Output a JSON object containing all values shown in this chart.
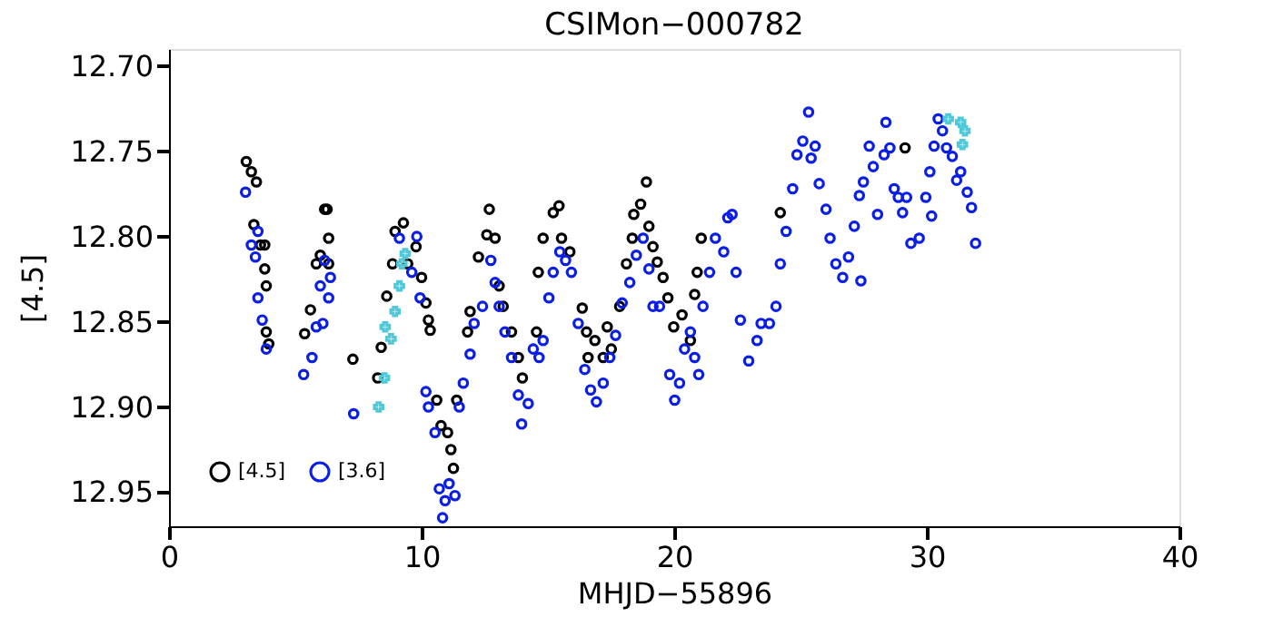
{
  "chart_data": {
    "type": "scatter",
    "title": "CSIMon−000782",
    "xlabel": "MHJD−55896",
    "ylabel": "[4.5]",
    "xlim": [
      0,
      40
    ],
    "xticks": [
      0,
      10,
      20,
      30,
      40
    ],
    "ylim": [
      12.97,
      12.69
    ],
    "yticks": [
      {
        "value": 12.7,
        "label": "12.70"
      },
      {
        "value": 12.75,
        "label": "12.75"
      },
      {
        "value": 12.8,
        "label": "12.80"
      },
      {
        "value": 12.85,
        "label": "12.85"
      },
      {
        "value": 12.9,
        "label": "12.90"
      },
      {
        "value": 12.95,
        "label": "12.95"
      }
    ],
    "grid": false,
    "legend": "bottom left",
    "series": [
      {
        "name": "[4.5]",
        "color": "#000000",
        "marker": "circle",
        "x": [
          3.06,
          3.26,
          3.46,
          3.36,
          3.62,
          3.79,
          3.85,
          3.79,
          3.85,
          3.95,
          5.37,
          5.6,
          5.83,
          5.99,
          6.16,
          6.32,
          6.32,
          6.26,
          7.28,
          8.26,
          8.4,
          8.62,
          8.85,
          8.95,
          9.28,
          9.45,
          9.78,
          10.0,
          10.17,
          10.27,
          10.34,
          10.6,
          10.77,
          11.03,
          11.16,
          11.26,
          11.39,
          11.82,
          11.92,
          12.25,
          12.58,
          12.68,
          12.91,
          13.07,
          13.23,
          13.56,
          13.83,
          13.99,
          14.55,
          14.62,
          14.81,
          15.21,
          15.44,
          15.54,
          15.87,
          16.36,
          16.53,
          16.59,
          16.86,
          17.19,
          17.35,
          17.51,
          17.84,
          18.11,
          18.34,
          18.4,
          18.67,
          18.9,
          19.0,
          19.16,
          19.33,
          19.56,
          19.75,
          19.98,
          20.31,
          20.64,
          20.81,
          20.91,
          21.07,
          24.2,
          29.14
        ],
        "values": [
          12.756,
          12.762,
          12.768,
          12.793,
          12.805,
          12.819,
          12.829,
          12.805,
          12.856,
          12.863,
          12.857,
          12.843,
          12.816,
          12.811,
          12.784,
          12.801,
          12.816,
          12.784,
          12.872,
          12.883,
          12.865,
          12.835,
          12.816,
          12.797,
          12.792,
          12.816,
          12.806,
          12.824,
          12.839,
          12.849,
          12.855,
          12.896,
          12.911,
          12.915,
          12.925,
          12.936,
          12.896,
          12.856,
          12.844,
          12.812,
          12.799,
          12.784,
          12.801,
          12.829,
          12.841,
          12.856,
          12.871,
          12.883,
          12.856,
          12.821,
          12.801,
          12.786,
          12.782,
          12.801,
          12.809,
          12.842,
          12.856,
          12.871,
          12.861,
          12.871,
          12.853,
          12.866,
          12.841,
          12.816,
          12.801,
          12.787,
          12.781,
          12.768,
          12.794,
          12.806,
          12.815,
          12.824,
          12.836,
          12.853,
          12.846,
          12.861,
          12.834,
          12.821,
          12.801,
          12.786,
          12.748
        ]
      },
      {
        "name": "[3.6]",
        "color": "#0a1ee6",
        "marker": "circle",
        "x": [
          3.03,
          3.26,
          3.42,
          3.52,
          3.69,
          3.85,
          3.52,
          5.33,
          5.66,
          5.83,
          5.99,
          6.16,
          6.32,
          6.39,
          6.09,
          7.31,
          9.12,
          9.61,
          9.81,
          9.94,
          10.17,
          10.27,
          10.53,
          10.7,
          10.83,
          10.93,
          11.09,
          11.32,
          11.49,
          11.65,
          11.92,
          12.08,
          12.41,
          12.74,
          12.91,
          13.07,
          13.3,
          13.56,
          13.83,
          13.96,
          14.22,
          14.42,
          14.65,
          14.81,
          15.04,
          15.21,
          15.47,
          15.7,
          15.93,
          16.2,
          16.46,
          16.69,
          16.92,
          17.19,
          17.45,
          17.68,
          17.94,
          18.24,
          18.5,
          18.77,
          19.0,
          19.16,
          19.42,
          19.82,
          20.02,
          20.21,
          20.41,
          20.64,
          20.81,
          20.97,
          21.14,
          21.4,
          21.63,
          21.96,
          22.12,
          22.29,
          22.45,
          22.62,
          22.95,
          23.28,
          23.44,
          23.77,
          24.03,
          24.2,
          24.43,
          24.69,
          24.86,
          25.09,
          25.32,
          25.42,
          25.58,
          25.74,
          26.01,
          26.17,
          26.4,
          26.67,
          26.9,
          27.13,
          27.33,
          27.49,
          27.72,
          27.88,
          28.05,
          28.31,
          28.38,
          28.54,
          28.71,
          28.87,
          29.04,
          29.2,
          29.37,
          29.7,
          29.96,
          30.12,
          30.29,
          30.45,
          30.62,
          30.78,
          31.01,
          31.18,
          31.34,
          31.6,
          31.77,
          31.93,
          30.19,
          27.39
        ],
        "values": [
          12.774,
          12.805,
          12.812,
          12.836,
          12.849,
          12.866,
          12.797,
          12.881,
          12.871,
          12.853,
          12.829,
          12.814,
          12.836,
          12.824,
          12.851,
          12.904,
          12.801,
          12.821,
          12.8,
          12.836,
          12.891,
          12.9,
          12.915,
          12.948,
          12.965,
          12.955,
          12.945,
          12.952,
          12.9,
          12.886,
          12.869,
          12.851,
          12.841,
          12.814,
          12.827,
          12.841,
          12.856,
          12.871,
          12.893,
          12.91,
          12.898,
          12.866,
          12.871,
          12.861,
          12.836,
          12.821,
          12.809,
          12.814,
          12.821,
          12.851,
          12.878,
          12.89,
          12.897,
          12.886,
          12.871,
          12.858,
          12.839,
          12.827,
          12.811,
          12.801,
          12.819,
          12.841,
          12.841,
          12.881,
          12.896,
          12.886,
          12.866,
          12.856,
          12.871,
          12.881,
          12.841,
          12.821,
          12.801,
          12.809,
          12.789,
          12.787,
          12.821,
          12.849,
          12.873,
          12.861,
          12.851,
          12.851,
          12.841,
          12.816,
          12.797,
          12.772,
          12.752,
          12.744,
          12.727,
          12.754,
          12.747,
          12.769,
          12.784,
          12.801,
          12.816,
          12.824,
          12.812,
          12.794,
          12.776,
          12.768,
          12.747,
          12.759,
          12.787,
          12.752,
          12.733,
          12.748,
          12.772,
          12.777,
          12.786,
          12.777,
          12.804,
          12.801,
          12.777,
          12.762,
          12.747,
          12.731,
          12.738,
          12.748,
          12.753,
          12.767,
          12.762,
          12.774,
          12.783,
          12.804,
          12.788,
          12.826
        ]
      },
      {
        "color": "#4fc8d8",
        "marker": "cross",
        "x": [
          8.3,
          8.53,
          8.56,
          8.79,
          8.95,
          9.12,
          9.22,
          9.35,
          30.85,
          31.34,
          31.51,
          31.41
        ],
        "values": [
          12.9,
          12.883,
          12.853,
          12.86,
          12.844,
          12.829,
          12.816,
          12.81,
          12.731,
          12.733,
          12.738,
          12.746
        ]
      }
    ]
  }
}
